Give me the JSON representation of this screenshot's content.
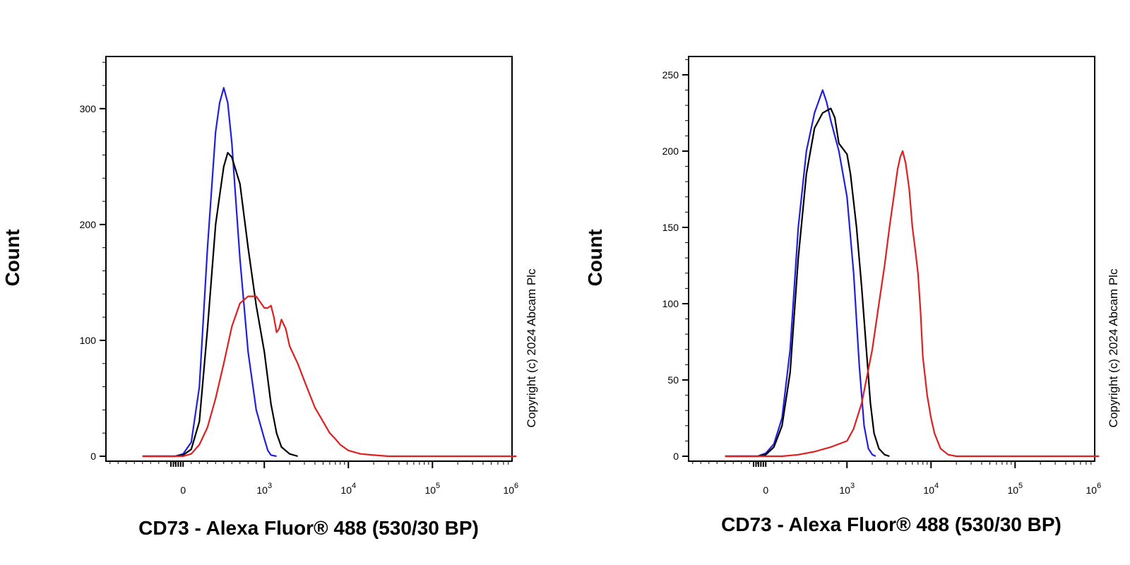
{
  "copyright": "Copyright (c) 2024 Abcam Plc",
  "chart_data": [
    {
      "type": "line",
      "xlabel": "CD73 - Alexa Fluor® 488 (530/30 BP)",
      "ylabel": "Count",
      "x_scale": "biexponential",
      "x_ticks": [
        {
          "base": "0",
          "exp": ""
        },
        {
          "base": "10",
          "exp": "3"
        },
        {
          "base": "10",
          "exp": "4"
        },
        {
          "base": "10",
          "exp": "5"
        },
        {
          "base": "10",
          "exp": "6"
        }
      ],
      "y_ticks": [
        "0",
        "100",
        "200",
        "300"
      ],
      "ylim": [
        0,
        345
      ],
      "grid": false,
      "series": [
        {
          "color": "#1f1fe0",
          "points": [
            [
              -500,
              0
            ],
            [
              -100,
              0
            ],
            [
              0,
              2
            ],
            [
              100,
              12
            ],
            [
              200,
              60
            ],
            [
              300,
              180
            ],
            [
              400,
              280
            ],
            [
              450,
              305
            ],
            [
              500,
              318
            ],
            [
              550,
              305
            ],
            [
              600,
              270
            ],
            [
              650,
              220
            ],
            [
              700,
              170
            ],
            [
              800,
              90
            ],
            [
              900,
              40
            ],
            [
              1000,
              15
            ],
            [
              1100,
              5
            ],
            [
              1200,
              1
            ],
            [
              1400,
              0
            ]
          ]
        },
        {
          "color": "#000000",
          "points": [
            [
              -500,
              0
            ],
            [
              -100,
              0
            ],
            [
              0,
              1
            ],
            [
              100,
              6
            ],
            [
              200,
              30
            ],
            [
              300,
              110
            ],
            [
              400,
              200
            ],
            [
              450,
              225
            ],
            [
              500,
              250
            ],
            [
              550,
              262
            ],
            [
              600,
              258
            ],
            [
              700,
              235
            ],
            [
              800,
              180
            ],
            [
              900,
              130
            ],
            [
              1000,
              90
            ],
            [
              1200,
              45
            ],
            [
              1400,
              20
            ],
            [
              1600,
              8
            ],
            [
              2000,
              2
            ],
            [
              2500,
              0
            ]
          ]
        },
        {
          "color": "#e01f1f",
          "points": [
            [
              -500,
              0
            ],
            [
              -100,
              0
            ],
            [
              0,
              0
            ],
            [
              100,
              2
            ],
            [
              200,
              10
            ],
            [
              300,
              25
            ],
            [
              400,
              50
            ],
            [
              500,
              80
            ],
            [
              600,
              112
            ],
            [
              700,
              132
            ],
            [
              800,
              138
            ],
            [
              900,
              138
            ],
            [
              1000,
              128
            ],
            [
              1100,
              128
            ],
            [
              1200,
              130
            ],
            [
              1300,
              120
            ],
            [
              1400,
              107
            ],
            [
              1500,
              110
            ],
            [
              1600,
              118
            ],
            [
              1800,
              110
            ],
            [
              2000,
              95
            ],
            [
              2500,
              80
            ],
            [
              3000,
              65
            ],
            [
              4000,
              42
            ],
            [
              5000,
              30
            ],
            [
              6000,
              20
            ],
            [
              7000,
              15
            ],
            [
              8000,
              10
            ],
            [
              10000,
              5
            ],
            [
              14000,
              2
            ],
            [
              20000,
              1
            ],
            [
              30000,
              0
            ],
            [
              1000000,
              0
            ]
          ]
        }
      ]
    },
    {
      "type": "line",
      "xlabel": "CD73 - Alexa Fluor® 488 (530/30 BP)",
      "ylabel": "Count",
      "x_scale": "biexponential",
      "x_ticks": [
        {
          "base": "0",
          "exp": ""
        },
        {
          "base": "10",
          "exp": "3"
        },
        {
          "base": "10",
          "exp": "4"
        },
        {
          "base": "10",
          "exp": "5"
        },
        {
          "base": "10",
          "exp": "6"
        }
      ],
      "y_ticks": [
        "0",
        "50",
        "100",
        "150",
        "200",
        "250"
      ],
      "ylim": [
        0,
        262
      ],
      "grid": false,
      "series": [
        {
          "color": "#1f1fe0",
          "points": [
            [
              -500,
              0
            ],
            [
              -100,
              0
            ],
            [
              0,
              2
            ],
            [
              100,
              8
            ],
            [
              200,
              25
            ],
            [
              300,
              70
            ],
            [
              400,
              150
            ],
            [
              500,
              200
            ],
            [
              600,
              225
            ],
            [
              700,
              240
            ],
            [
              750,
              232
            ],
            [
              800,
              220
            ],
            [
              900,
              200
            ],
            [
              1000,
              170
            ],
            [
              1200,
              120
            ],
            [
              1400,
              60
            ],
            [
              1600,
              20
            ],
            [
              1800,
              5
            ],
            [
              2000,
              1
            ],
            [
              2200,
              0
            ]
          ]
        },
        {
          "color": "#000000",
          "points": [
            [
              -500,
              0
            ],
            [
              -100,
              0
            ],
            [
              0,
              1
            ],
            [
              100,
              6
            ],
            [
              200,
              20
            ],
            [
              300,
              55
            ],
            [
              400,
              130
            ],
            [
              500,
              185
            ],
            [
              600,
              215
            ],
            [
              700,
              225
            ],
            [
              800,
              228
            ],
            [
              850,
              222
            ],
            [
              900,
              205
            ],
            [
              1000,
              198
            ],
            [
              1100,
              185
            ],
            [
              1300,
              150
            ],
            [
              1500,
              110
            ],
            [
              1700,
              70
            ],
            [
              1900,
              35
            ],
            [
              2100,
              15
            ],
            [
              2400,
              5
            ],
            [
              2800,
              1
            ],
            [
              3200,
              0
            ]
          ]
        },
        {
          "color": "#e01f1f",
          "points": [
            [
              -500,
              0
            ],
            [
              -100,
              0
            ],
            [
              0,
              0
            ],
            [
              200,
              0
            ],
            [
              400,
              1
            ],
            [
              600,
              3
            ],
            [
              800,
              6
            ],
            [
              1000,
              10
            ],
            [
              1200,
              18
            ],
            [
              1500,
              35
            ],
            [
              2000,
              70
            ],
            [
              2400,
              100
            ],
            [
              2800,
              125
            ],
            [
              3200,
              150
            ],
            [
              3600,
              170
            ],
            [
              4000,
              188
            ],
            [
              4300,
              196
            ],
            [
              4600,
              200
            ],
            [
              5000,
              192
            ],
            [
              5500,
              175
            ],
            [
              6000,
              150
            ],
            [
              6500,
              135
            ],
            [
              7000,
              120
            ],
            [
              7500,
              95
            ],
            [
              8000,
              65
            ],
            [
              9000,
              40
            ],
            [
              10000,
              25
            ],
            [
              11000,
              15
            ],
            [
              13000,
              5
            ],
            [
              16000,
              1
            ],
            [
              20000,
              0
            ],
            [
              1000000,
              0
            ]
          ]
        }
      ]
    }
  ]
}
